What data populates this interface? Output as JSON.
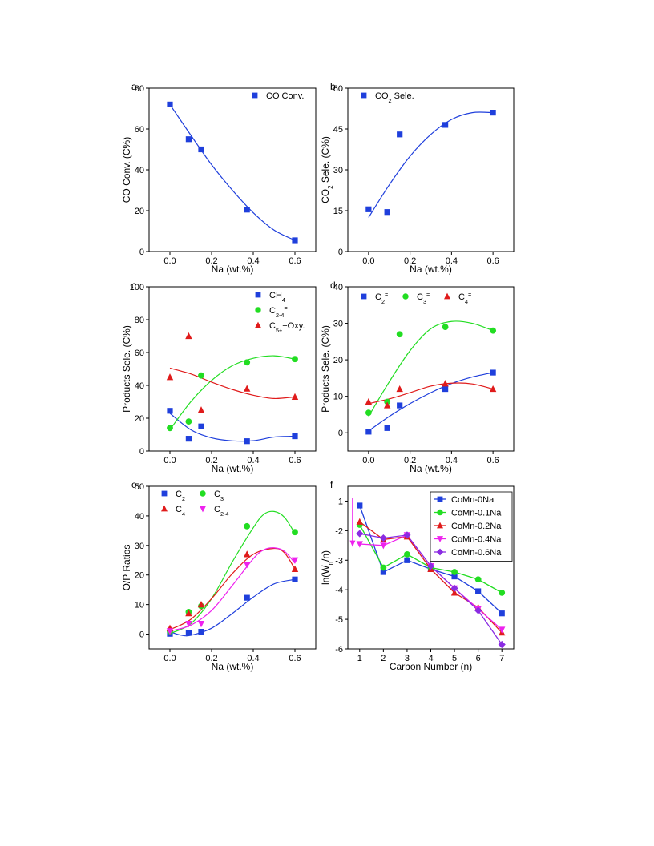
{
  "colors": {
    "blue": "#1f3fdc",
    "green": "#22dd22",
    "red": "#e01b1b",
    "magenta": "#ee22ee",
    "violet": "#8a2be2"
  },
  "chart_data": [
    {
      "id": "a",
      "type": "scatter",
      "panel_label": "a",
      "xlabel": "Na (wt.%)",
      "ylabel": "CO Conv. (C%)",
      "xlim": [
        -0.1,
        0.7
      ],
      "ylim": [
        0,
        80
      ],
      "xticks": [
        0.0,
        0.2,
        0.4,
        0.6
      ],
      "xtick_labels": [
        "0.0",
        "0.2",
        "0.4",
        "0.6"
      ],
      "yticks": [
        0,
        20,
        40,
        60,
        80
      ],
      "ytick_labels": [
        "0",
        "20",
        "40",
        "60",
        "80"
      ],
      "legend_position": "top-right",
      "series": [
        {
          "name": "CO Conv.",
          "color": "#1f3fdc",
          "marker": "square",
          "x": [
            0.0,
            0.09,
            0.15,
            0.37,
            0.6
          ],
          "y": [
            72,
            55,
            50,
            20.5,
            5.5
          ],
          "fit": [
            [
              0.0,
              72
            ],
            [
              0.1,
              57
            ],
            [
              0.2,
              42.5
            ],
            [
              0.3,
              30
            ],
            [
              0.4,
              19
            ],
            [
              0.5,
              10.5
            ],
            [
              0.6,
              5.5
            ]
          ]
        }
      ]
    },
    {
      "id": "b",
      "type": "scatter",
      "panel_label": "b",
      "xlabel": "Na (wt.%)",
      "ylabel": "CO2 Sele. (C%)",
      "xlim": [
        -0.1,
        0.7
      ],
      "ylim": [
        0,
        60
      ],
      "xticks": [
        0.0,
        0.2,
        0.4,
        0.6
      ],
      "xtick_labels": [
        "0.0",
        "0.2",
        "0.4",
        "0.6"
      ],
      "yticks": [
        0,
        15,
        30,
        45,
        60
      ],
      "ytick_labels": [
        "0",
        "15",
        "30",
        "45",
        "60"
      ],
      "legend_position": "top-left",
      "series": [
        {
          "name": "CO2 Sele.",
          "color": "#1f3fdc",
          "marker": "square",
          "x": [
            0.0,
            0.09,
            0.15,
            0.37,
            0.6
          ],
          "y": [
            15.5,
            14.5,
            43,
            46.5,
            51
          ],
          "fit": [
            [
              0.0,
              12.5
            ],
            [
              0.1,
              24.5
            ],
            [
              0.2,
              35
            ],
            [
              0.3,
              43
            ],
            [
              0.4,
              48.5
            ],
            [
              0.5,
              51
            ],
            [
              0.6,
              51
            ]
          ]
        }
      ]
    },
    {
      "id": "c",
      "type": "scatter",
      "panel_label": "c",
      "xlabel": "Na (wt.%)",
      "ylabel": "Products Sele. (C%)",
      "xlim": [
        -0.1,
        0.7
      ],
      "ylim": [
        0,
        100
      ],
      "xticks": [
        0.0,
        0.2,
        0.4,
        0.6
      ],
      "xtick_labels": [
        "0.0",
        "0.2",
        "0.4",
        "0.6"
      ],
      "yticks": [
        0,
        20,
        40,
        60,
        80,
        100
      ],
      "ytick_labels": [
        "0",
        "20",
        "40",
        "60",
        "80",
        "100"
      ],
      "legend_position": "top-right",
      "series": [
        {
          "name": "CH4",
          "color": "#1f3fdc",
          "marker": "square",
          "x": [
            0.0,
            0.09,
            0.15,
            0.37,
            0.6
          ],
          "y": [
            24.5,
            7.5,
            15,
            6,
            9
          ],
          "fit": [
            [
              0.0,
              23
            ],
            [
              0.1,
              13
            ],
            [
              0.2,
              8
            ],
            [
              0.3,
              6.2
            ],
            [
              0.4,
              6.3
            ],
            [
              0.5,
              8.5
            ],
            [
              0.6,
              9
            ]
          ]
        },
        {
          "name": "C2-4=",
          "color": "#22dd22",
          "marker": "circle",
          "x": [
            0.0,
            0.09,
            0.15,
            0.37,
            0.6
          ],
          "y": [
            14,
            18,
            46,
            54,
            56
          ],
          "fit": [
            [
              0.0,
              13
            ],
            [
              0.1,
              30
            ],
            [
              0.2,
              43
            ],
            [
              0.3,
              52
            ],
            [
              0.4,
              56.5
            ],
            [
              0.5,
              58
            ],
            [
              0.6,
              56
            ]
          ]
        },
        {
          "name": "C5++Oxy.",
          "color": "#e01b1b",
          "marker": "triangle",
          "x": [
            0.0,
            0.09,
            0.15,
            0.37,
            0.6
          ],
          "y": [
            45,
            70,
            25,
            38,
            33
          ],
          "fit": [
            [
              0.0,
              50.5
            ],
            [
              0.1,
              47
            ],
            [
              0.2,
              42
            ],
            [
              0.3,
              37.5
            ],
            [
              0.4,
              34
            ],
            [
              0.5,
              32
            ],
            [
              0.6,
              33
            ]
          ]
        }
      ]
    },
    {
      "id": "d",
      "type": "scatter",
      "panel_label": "d",
      "xlabel": "Na (wt.%)",
      "ylabel": "Products Sele. (C%)",
      "xlim": [
        -0.1,
        0.7
      ],
      "ylim": [
        -5,
        40
      ],
      "xticks": [
        0.0,
        0.2,
        0.4,
        0.6
      ],
      "xtick_labels": [
        "0.0",
        "0.2",
        "0.4",
        "0.6"
      ],
      "yticks": [
        0,
        10,
        20,
        30,
        40
      ],
      "ytick_labels": [
        "0",
        "10",
        "20",
        "30",
        "40"
      ],
      "legend_position": "top",
      "series": [
        {
          "name": "C2=",
          "color": "#1f3fdc",
          "marker": "square",
          "x": [
            0.0,
            0.09,
            0.15,
            0.37,
            0.6
          ],
          "y": [
            0.3,
            1.3,
            7.5,
            12,
            16.5
          ],
          "fit": [
            [
              0.0,
              0.5
            ],
            [
              0.1,
              4.5
            ],
            [
              0.2,
              8
            ],
            [
              0.3,
              11
            ],
            [
              0.4,
              13.5
            ],
            [
              0.5,
              15.3
            ],
            [
              0.6,
              16.5
            ]
          ]
        },
        {
          "name": "C3=",
          "color": "#22dd22",
          "marker": "circle",
          "x": [
            0.0,
            0.09,
            0.15,
            0.37,
            0.6
          ],
          "y": [
            5.5,
            8.5,
            27,
            29,
            28
          ],
          "fit": [
            [
              0.0,
              4.5
            ],
            [
              0.1,
              14
            ],
            [
              0.2,
              22.5
            ],
            [
              0.3,
              28.5
            ],
            [
              0.4,
              30.5
            ],
            [
              0.5,
              30
            ],
            [
              0.6,
              28
            ]
          ]
        },
        {
          "name": "C4=",
          "color": "#e01b1b",
          "marker": "triangle",
          "x": [
            0.0,
            0.09,
            0.15,
            0.37,
            0.6
          ],
          "y": [
            8.5,
            7.5,
            12,
            13.5,
            12
          ],
          "fit": [
            [
              0.0,
              8
            ],
            [
              0.1,
              9.3
            ],
            [
              0.2,
              11
            ],
            [
              0.3,
              12.8
            ],
            [
              0.4,
              13.6
            ],
            [
              0.5,
              13.4
            ],
            [
              0.6,
              12
            ]
          ]
        }
      ]
    },
    {
      "id": "e",
      "type": "scatter",
      "panel_label": "e",
      "xlabel": "Na (wt.%)",
      "ylabel": "O/P Ratios",
      "xlim": [
        -0.1,
        0.7
      ],
      "ylim": [
        -5,
        50
      ],
      "xticks": [
        0.0,
        0.2,
        0.4,
        0.6
      ],
      "xtick_labels": [
        "0.0",
        "0.2",
        "0.4",
        "0.6"
      ],
      "yticks": [
        0,
        10,
        20,
        30,
        40,
        50
      ],
      "ytick_labels": [
        "0",
        "10",
        "20",
        "30",
        "40",
        "50"
      ],
      "legend_position": "top-left",
      "series": [
        {
          "name": "C2",
          "color": "#1f3fdc",
          "marker": "square",
          "x": [
            0.0,
            0.09,
            0.15,
            0.37,
            0.6
          ],
          "y": [
            0.1,
            0.5,
            0.8,
            12.3,
            18.5
          ],
          "fit": [
            [
              0.0,
              0.8
            ],
            [
              0.05,
              -0.3
            ],
            [
              0.1,
              -0.4
            ],
            [
              0.2,
              2
            ],
            [
              0.3,
              7
            ],
            [
              0.4,
              12.5
            ],
            [
              0.5,
              17
            ],
            [
              0.6,
              18.5
            ]
          ]
        },
        {
          "name": "C3",
          "color": "#22dd22",
          "marker": "circle",
          "x": [
            0.0,
            0.09,
            0.15,
            0.37,
            0.6
          ],
          "y": [
            1,
            7.5,
            9.5,
            36.5,
            34.5
          ],
          "fit": [
            [
              0.0,
              0.2
            ],
            [
              0.1,
              3.5
            ],
            [
              0.2,
              12
            ],
            [
              0.3,
              24.5
            ],
            [
              0.4,
              36
            ],
            [
              0.45,
              40.5
            ],
            [
              0.5,
              41.5
            ],
            [
              0.55,
              39.5
            ],
            [
              0.6,
              34
            ]
          ]
        },
        {
          "name": "C4",
          "color": "#e01b1b",
          "marker": "triangle",
          "x": [
            0.0,
            0.09,
            0.15,
            0.37,
            0.6
          ],
          "y": [
            2,
            7,
            10,
            27,
            22
          ],
          "fit": [
            [
              0.0,
              1.5
            ],
            [
              0.1,
              5
            ],
            [
              0.2,
              12
            ],
            [
              0.3,
              20.5
            ],
            [
              0.4,
              27
            ],
            [
              0.5,
              29
            ],
            [
              0.55,
              27.5
            ],
            [
              0.6,
              22
            ]
          ]
        },
        {
          "name": "C2-4",
          "color": "#ee22ee",
          "marker": "triangle-down",
          "x": [
            0.0,
            0.09,
            0.15,
            0.37,
            0.6
          ],
          "y": [
            1,
            3.5,
            3.5,
            23.5,
            25
          ],
          "fit": [
            [
              0.0,
              1
            ],
            [
              0.1,
              3
            ],
            [
              0.2,
              8
            ],
            [
              0.3,
              16.5
            ],
            [
              0.4,
              25.5
            ],
            [
              0.45,
              28.5
            ],
            [
              0.5,
              29.2
            ],
            [
              0.55,
              28
            ],
            [
              0.6,
              24
            ]
          ]
        }
      ]
    },
    {
      "id": "f",
      "type": "line",
      "panel_label": "f",
      "xlabel": "Carbon Number (n)",
      "ylabel": "ln(Wn/n)",
      "xlim": [
        0.5,
        7.5
      ],
      "ylim": [
        -6,
        -0.5
      ],
      "xticks": [
        1,
        2,
        3,
        4,
        5,
        6,
        7
      ],
      "xtick_labels": [
        "1",
        "2",
        "3",
        "4",
        "5",
        "6",
        "7"
      ],
      "yticks": [
        -6,
        -5,
        -4,
        -3,
        -2,
        -1
      ],
      "ytick_labels": [
        "-6",
        "-5",
        "-4",
        "-3",
        "-2",
        "-1"
      ],
      "legend_position": "top-right",
      "series": [
        {
          "name": "CoMn-0Na",
          "color": "#1f3fdc",
          "marker": "square",
          "x": [
            1,
            2,
            3,
            4,
            5,
            6,
            7
          ],
          "y": [
            -1.15,
            -3.4,
            -3.0,
            -3.3,
            -3.55,
            -4.05,
            -4.8
          ]
        },
        {
          "name": "CoMn-0.1Na",
          "color": "#22dd22",
          "marker": "circle",
          "x": [
            1,
            2,
            3,
            4,
            5,
            6,
            7
          ],
          "y": [
            -1.8,
            -3.25,
            -2.8,
            -3.25,
            -3.4,
            -3.65,
            -4.1
          ]
        },
        {
          "name": "CoMn-0.2Na",
          "color": "#e01b1b",
          "marker": "triangle",
          "x": [
            1,
            2,
            3,
            4,
            5,
            6,
            7
          ],
          "y": [
            -1.7,
            -2.3,
            -2.2,
            -3.3,
            -4.1,
            -4.6,
            -5.45
          ]
        },
        {
          "name": "CoMn-0.4Na",
          "color": "#ee22ee",
          "marker": "triangle-down",
          "x": [
            1,
            2,
            3,
            4,
            5,
            6,
            7
          ],
          "y": [
            -2.45,
            -2.5,
            -2.15,
            -3.2,
            -3.95,
            -4.65,
            -5.35
          ]
        },
        {
          "name": "CoMn-0.6Na",
          "color": "#8a2be2",
          "marker": "diamond",
          "x": [
            1,
            2,
            3,
            4,
            5,
            6,
            7
          ],
          "y": [
            -2.1,
            -2.25,
            -2.15,
            -3.2,
            -3.95,
            -4.7,
            -5.85
          ]
        }
      ],
      "arrow": {
        "x": 0.7,
        "y_start": -0.9,
        "y_end": -2.55,
        "color": "#ee22ee"
      }
    }
  ]
}
